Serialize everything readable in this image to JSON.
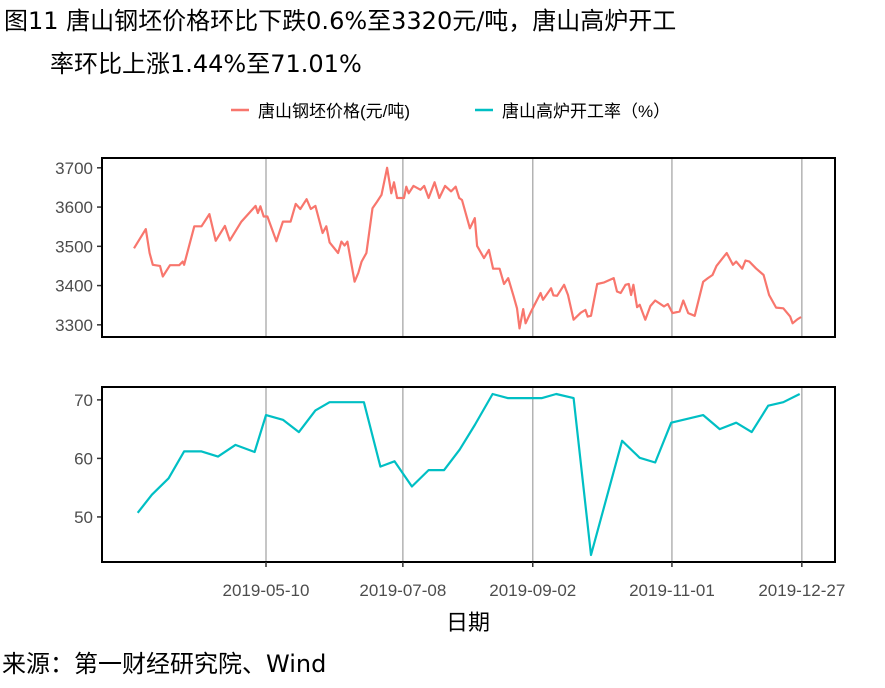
{
  "title": {
    "line1": "图11 唐山钢坯价格环比下跌0.6%至3320元/吨，唐山高炉开工",
    "line2": "率环比上涨1.44%至71.01%"
  },
  "source": "来源：第一财经研究院、Wind",
  "colors": {
    "price": "#F8766D",
    "rate": "#00BFC4",
    "grid": "#b3b3b3"
  },
  "chart_data": [
    {
      "type": "line",
      "title": "",
      "xlabel": "日期",
      "ylabel": "",
      "x_unit": "days since 2019-05-10",
      "xlim": [
        -70.7,
        245.3
      ],
      "ylim": [
        3269,
        3725
      ],
      "grid": "vertical",
      "legend_position": "top",
      "x_ticks": [
        {
          "x": 0,
          "label": "2019-05-10"
        },
        {
          "x": 59,
          "label": "2019-07-08"
        },
        {
          "x": 115,
          "label": "2019-09-02"
        },
        {
          "x": 175,
          "label": "2019-11-01"
        },
        {
          "x": 231,
          "label": "2019-12-27"
        }
      ],
      "y_ticks": [
        3300,
        3400,
        3500,
        3600,
        3700
      ],
      "series": [
        {
          "name": "唐山钢坯价格(元/吨)",
          "color": "#F8766D",
          "points": [
            [
              -56.9,
              3495
            ],
            [
              -51.8,
              3544
            ],
            [
              -50.2,
              3483
            ],
            [
              -48.8,
              3453
            ],
            [
              -45.7,
              3450
            ],
            [
              -44.5,
              3423
            ],
            [
              -41.4,
              3452
            ],
            [
              -37.4,
              3452
            ],
            [
              -35.9,
              3461
            ],
            [
              -35.3,
              3453
            ],
            [
              -30.9,
              3551
            ],
            [
              -27.8,
              3551
            ],
            [
              -24.4,
              3582
            ],
            [
              -21.7,
              3514
            ],
            [
              -17.7,
              3552
            ],
            [
              -15.6,
              3515
            ],
            [
              -10.6,
              3563
            ],
            [
              -4.5,
              3603
            ],
            [
              -3.5,
              3585
            ],
            [
              -2.4,
              3602
            ],
            [
              -1.0,
              3576
            ],
            [
              0.6,
              3576
            ],
            [
              4.5,
              3513
            ],
            [
              7.3,
              3563
            ],
            [
              10.6,
              3563
            ],
            [
              12.8,
              3608
            ],
            [
              14.8,
              3595
            ],
            [
              17.5,
              3620
            ],
            [
              19.3,
              3595
            ],
            [
              21.3,
              3603
            ],
            [
              24.4,
              3534
            ],
            [
              26.0,
              3551
            ],
            [
              27.4,
              3510
            ],
            [
              31.1,
              3483
            ],
            [
              32.5,
              3512
            ],
            [
              33.9,
              3502
            ],
            [
              35.1,
              3512
            ],
            [
              38.2,
              3410
            ],
            [
              39.8,
              3432
            ],
            [
              41.2,
              3461
            ],
            [
              43.3,
              3483
            ],
            [
              45.9,
              3597
            ],
            [
              47.9,
              3614
            ],
            [
              49.8,
              3631
            ],
            [
              52.2,
              3700
            ],
            [
              54.0,
              3635
            ],
            [
              55.2,
              3663
            ],
            [
              56.5,
              3623
            ],
            [
              59.5,
              3623
            ],
            [
              60.5,
              3652
            ],
            [
              61.5,
              3635
            ],
            [
              63.6,
              3654
            ],
            [
              66.6,
              3644
            ],
            [
              68.2,
              3654
            ],
            [
              70.1,
              3623
            ],
            [
              72.7,
              3663
            ],
            [
              74.7,
              3623
            ],
            [
              77.2,
              3654
            ],
            [
              79.8,
              3640
            ],
            [
              81.8,
              3652
            ],
            [
              83.3,
              3623
            ],
            [
              84.5,
              3618
            ],
            [
              87.9,
              3546
            ],
            [
              90.0,
              3572
            ],
            [
              91.0,
              3501
            ],
            [
              94.0,
              3470
            ],
            [
              96.1,
              3491
            ],
            [
              97.9,
              3443
            ],
            [
              100.7,
              3443
            ],
            [
              102.6,
              3404
            ],
            [
              104.4,
              3419
            ],
            [
              106.8,
              3372
            ],
            [
              108.2,
              3342
            ],
            [
              109.3,
              3291
            ],
            [
              110.9,
              3340
            ],
            [
              111.9,
              3304
            ],
            [
              114.3,
              3334
            ],
            [
              118.4,
              3381
            ],
            [
              119.4,
              3364
            ],
            [
              122.9,
              3393
            ],
            [
              123.9,
              3375
            ],
            [
              125.5,
              3374
            ],
            [
              128.5,
              3402
            ],
            [
              130.2,
              3376
            ],
            [
              132.6,
              3313
            ],
            [
              135.7,
              3331
            ],
            [
              137.7,
              3338
            ],
            [
              138.7,
              3321
            ],
            [
              140.1,
              3323
            ],
            [
              142.8,
              3404
            ],
            [
              145.8,
              3408
            ],
            [
              149.9,
              3419
            ],
            [
              151.3,
              3385
            ],
            [
              152.9,
              3381
            ],
            [
              155.0,
              3402
            ],
            [
              156.4,
              3404
            ],
            [
              157.4,
              3376
            ],
            [
              158.4,
              3402
            ],
            [
              160.0,
              3345
            ],
            [
              161.1,
              3351
            ],
            [
              163.5,
              3313
            ],
            [
              165.7,
              3348
            ],
            [
              167.8,
              3362
            ],
            [
              171.6,
              3347
            ],
            [
              173.2,
              3353
            ],
            [
              175.3,
              3330
            ],
            [
              178.3,
              3334
            ],
            [
              179.9,
              3362
            ],
            [
              182.0,
              3330
            ],
            [
              184.8,
              3323
            ],
            [
              188.5,
              3410
            ],
            [
              190.5,
              3419
            ],
            [
              192.5,
              3427
            ],
            [
              194.2,
              3450
            ],
            [
              198.6,
              3483
            ],
            [
              201.3,
              3453
            ],
            [
              202.7,
              3461
            ],
            [
              205.3,
              3443
            ],
            [
              206.7,
              3464
            ],
            [
              208.4,
              3461
            ],
            [
              211.2,
              3444
            ],
            [
              214.5,
              3427
            ],
            [
              216.9,
              3376
            ],
            [
              219.9,
              3344
            ],
            [
              223.0,
              3342
            ],
            [
              226.0,
              3321
            ],
            [
              227.0,
              3304
            ],
            [
              229.1,
              3314
            ],
            [
              230.7,
              3320
            ]
          ]
        }
      ]
    },
    {
      "type": "line",
      "title": "",
      "xlabel": "日期",
      "ylabel": "",
      "x_unit": "days since 2019-05-10",
      "xlim": [
        -70.7,
        245.3
      ],
      "ylim": [
        42.3,
        72.2
      ],
      "grid": "vertical",
      "legend_position": "top",
      "y_ticks": [
        50,
        60,
        70
      ],
      "series": [
        {
          "name": "唐山高炉开工率（%）",
          "color": "#00BFC4",
          "points": [
            [
              -55.3,
              50.7
            ],
            [
              -49.2,
              53.8
            ],
            [
              -42.0,
              56.6
            ],
            [
              -35.3,
              61.2
            ],
            [
              -27.8,
              61.2
            ],
            [
              -20.7,
              60.3
            ],
            [
              -13.2,
              62.3
            ],
            [
              -4.9,
              61.1
            ],
            [
              0,
              67.4
            ],
            [
              7.3,
              66.6
            ],
            [
              14.2,
              64.5
            ],
            [
              21.3,
              68.2
            ],
            [
              27.4,
              69.6
            ],
            [
              42.2,
              69.6
            ],
            [
              49.3,
              58.6
            ],
            [
              55.4,
              59.5
            ],
            [
              62.9,
              55.2
            ],
            [
              70.1,
              58.0
            ],
            [
              76.8,
              58.0
            ],
            [
              83.5,
              61.5
            ],
            [
              90.0,
              65.7
            ],
            [
              97.7,
              71.0
            ],
            [
              104.2,
              70.3
            ],
            [
              119.0,
              70.3
            ],
            [
              125.1,
              71.0
            ],
            [
              132.6,
              70.3
            ],
            [
              140.1,
              43.5
            ],
            [
              153.5,
              63.0
            ],
            [
              161.1,
              60.1
            ],
            [
              167.8,
              59.3
            ],
            [
              174.7,
              66.1
            ],
            [
              188.5,
              67.4
            ],
            [
              195.6,
              65.0
            ],
            [
              202.7,
              66.1
            ],
            [
              209.4,
              64.5
            ],
            [
              216.5,
              69.0
            ],
            [
              223.0,
              69.6
            ],
            [
              230.1,
              71.01
            ]
          ]
        }
      ]
    }
  ]
}
